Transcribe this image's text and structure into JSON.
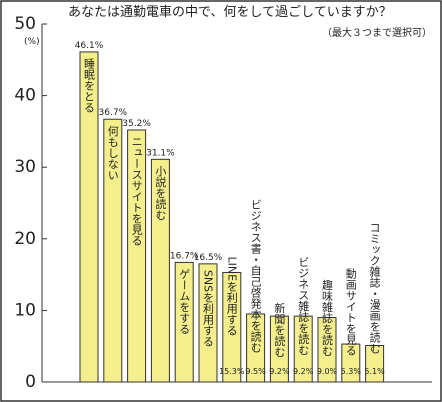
{
  "chart_data": {
    "type": "bar",
    "title": "あなたは通勤電車の中で、何をして過ごしていますか？",
    "subtitle": "（最大３つまで選択可）",
    "y_unit": "(%)",
    "categories": [
      "睡眠をとる",
      "何もしない",
      "ニュースサイトを見る",
      "小説を読む",
      "ゲームをする",
      "SNSを利用する",
      "LINEを利用する",
      "ビジネス書・自己啓発本を読む",
      "新聞を読む",
      "ビジネス雑誌を読む",
      "趣味雑誌を読む",
      "動画サイトを見る",
      "コミック雑誌・漫画を読む"
    ],
    "values": [
      46.1,
      36.7,
      35.2,
      31.1,
      16.7,
      16.5,
      15.3,
      9.5,
      9.2,
      9.2,
      9.0,
      5.3,
      5.1
    ],
    "value_labels": [
      "46.1%",
      "36.7%",
      "35.2%",
      "31.1%",
      "16.7%",
      "16.5%",
      "15.3%",
      "9.5%",
      "9.2%",
      "9.2%",
      "9.0%",
      "5.3%",
      "5.1%"
    ],
    "color": "#f4ef8c",
    "ylim": [
      0,
      50
    ],
    "yticks": [
      0,
      10,
      20,
      30,
      40,
      50
    ]
  }
}
